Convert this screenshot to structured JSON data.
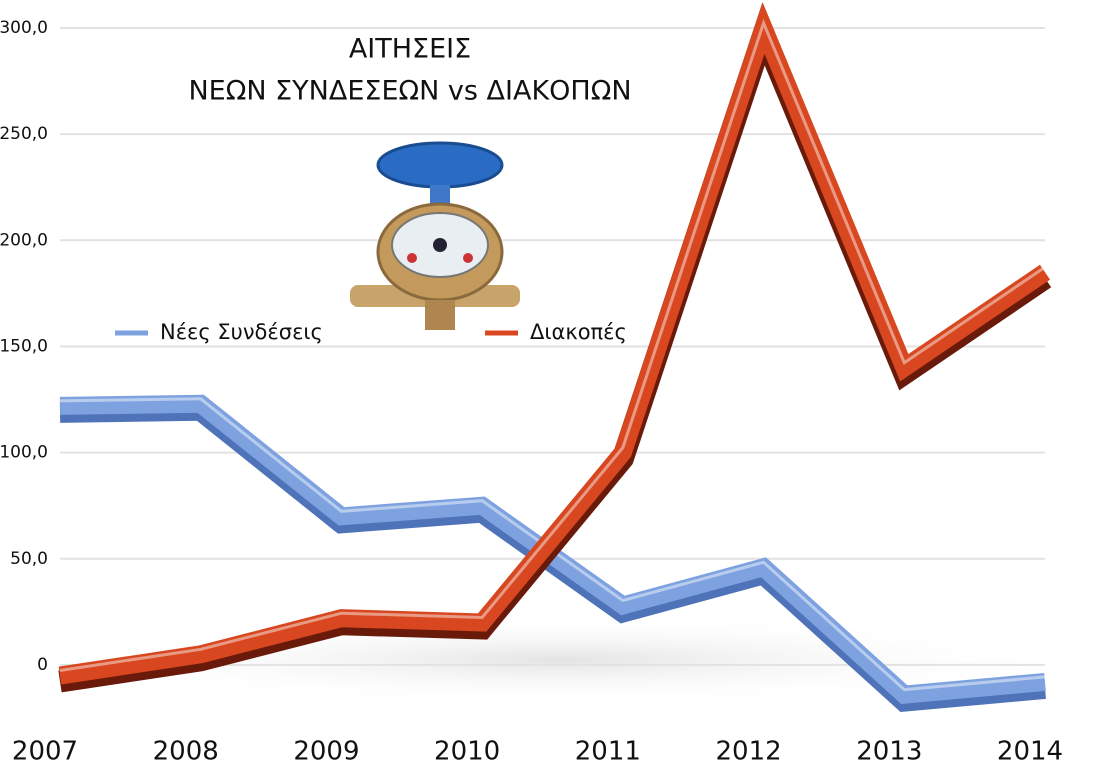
{
  "chart_data": {
    "type": "line",
    "title": [
      "ΑΙΤΗΣΕΙΣ",
      "ΝΕΩΝ ΣΥΝΔΕΣΕΩΝ vs ΔΙΑΚΟΠΩΝ"
    ],
    "categories": [
      "2007",
      "2008",
      "2009",
      "2010",
      "2011",
      "2012",
      "2013",
      "2014"
    ],
    "series": [
      {
        "name": "Νέες Συνδέσεις",
        "color": "#7ea2e0",
        "values": [
          122,
          123,
          70,
          75,
          28,
          46,
          -14,
          -8
        ]
      },
      {
        "name": "Διακοπές",
        "color": "#d8471f",
        "values": [
          -5,
          5,
          22,
          20,
          100,
          300,
          140,
          185
        ]
      }
    ],
    "ylim": [
      -25,
      300
    ],
    "yticks": [
      0,
      {
        "value": 50,
        "label": "50,0"
      },
      {
        "value": 100,
        "label": "100,0"
      },
      {
        "value": 150,
        "label": "150,0"
      },
      {
        "value": 200,
        "label": "200,0"
      },
      {
        "value": 250,
        "label": "250,0"
      },
      {
        "value": 300,
        "label": "300,0"
      }
    ],
    "grid": true
  }
}
